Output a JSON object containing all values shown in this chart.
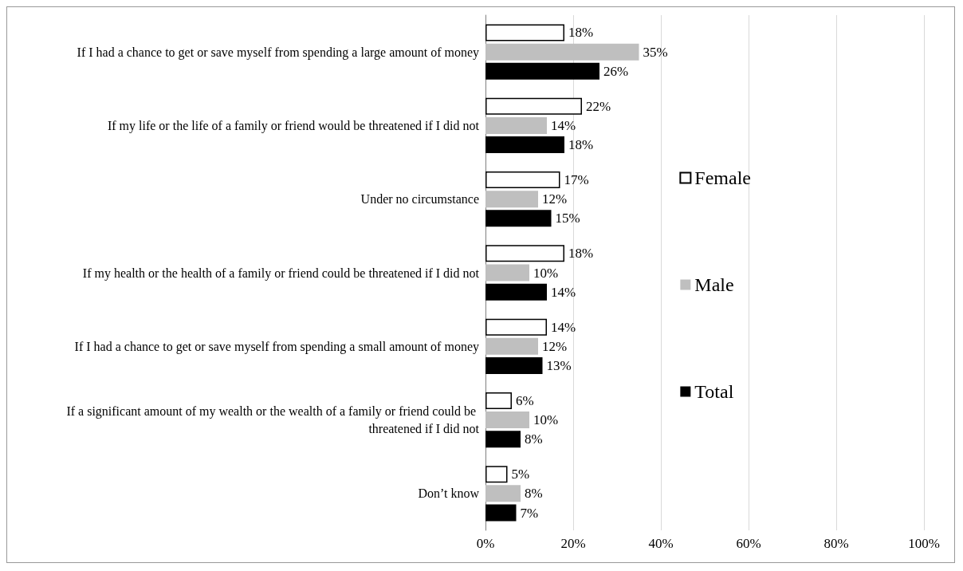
{
  "chart_data": {
    "type": "bar",
    "orientation": "horizontal",
    "categories": [
      "If I had a chance to get or save myself from spending a large amount of money",
      "If my life or the life of a family or friend would be threatened if I did not",
      "Under no circumstance",
      "If my health or the health of a family or friend could be threatened if I did not",
      "If I had a chance to get or save myself from spending a small amount of money",
      "If a significant amount of my wealth or the wealth of a family or friend could be threatened if I did not",
      "Don’t know"
    ],
    "series": [
      {
        "name": "Female",
        "color": "#ffffff",
        "values": [
          18,
          22,
          17,
          18,
          14,
          6,
          5
        ],
        "value_labels": [
          "18%",
          "22%",
          "17%",
          "18%",
          "14%",
          "6%",
          "5%"
        ]
      },
      {
        "name": "Male",
        "color": "#bfbfbf",
        "values": [
          35,
          14,
          12,
          10,
          12,
          10,
          8
        ],
        "value_labels": [
          "35%",
          "14%",
          "12%",
          "10%",
          "12%",
          "10%",
          "8%"
        ]
      },
      {
        "name": "Total",
        "color": "#000000",
        "values": [
          26,
          18,
          15,
          14,
          13,
          8,
          7
        ],
        "value_labels": [
          "26%",
          "18%",
          "15%",
          "14%",
          "13%",
          "8%",
          "7%"
        ]
      }
    ],
    "xlim": [
      0,
      100
    ],
    "xticks": [
      {
        "value": 0,
        "label": "0%"
      },
      {
        "value": 20,
        "label": "20%"
      },
      {
        "value": 40,
        "label": "40%"
      },
      {
        "value": 60,
        "label": "60%"
      },
      {
        "value": 80,
        "label": "80%"
      },
      {
        "value": 100,
        "label": "100%"
      }
    ],
    "grid": "x",
    "legend": "right"
  }
}
